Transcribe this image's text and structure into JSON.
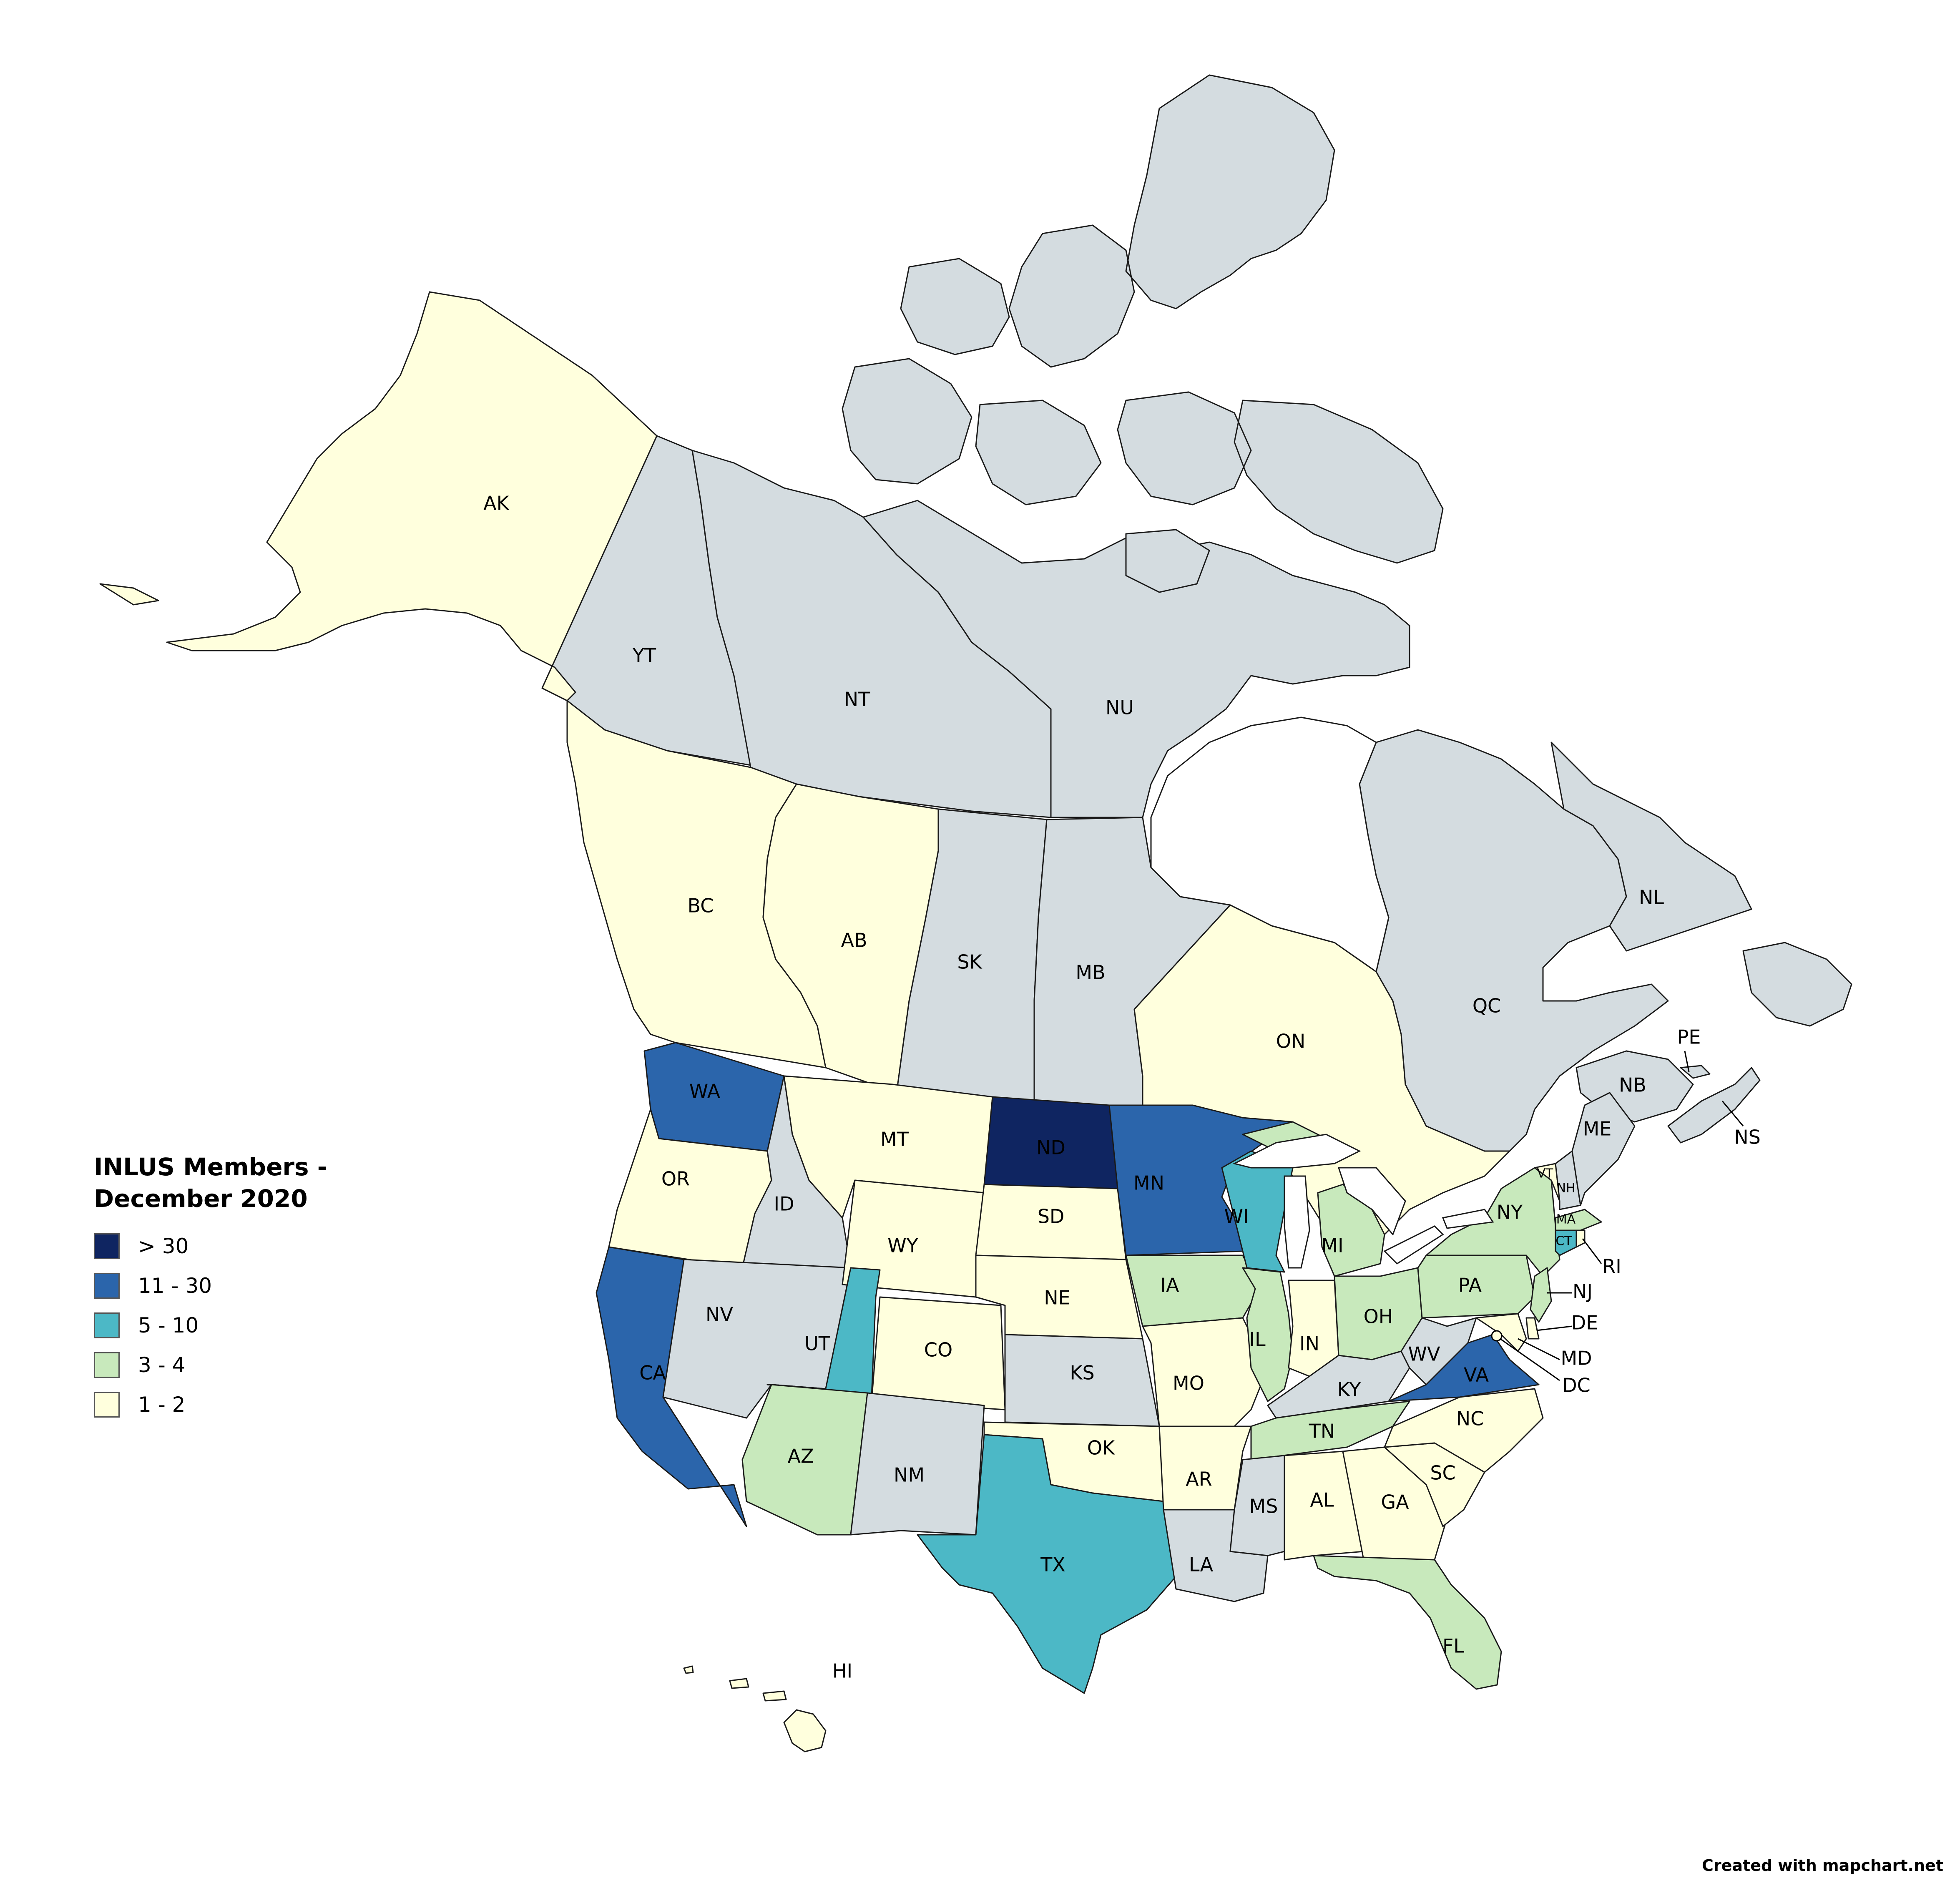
{
  "title": "INLUS Members - December 2020",
  "credit": "Created with mapchart.net",
  "colors": {
    "none": "#d4dce0",
    "c1": "#ffffdd",
    "c2": "#c8e9bc",
    "c3": "#4cb8c6",
    "c4": "#2b65ab",
    "c5": "#0f2561",
    "water": "#ffffff"
  },
  "legend": [
    {
      "label": "> 30",
      "color": "#0f2561"
    },
    {
      "label": "11 - 30",
      "color": "#2b65ab"
    },
    {
      "label": "5 - 10",
      "color": "#4cb8c6"
    },
    {
      "label": "3 - 4",
      "color": "#c8e9bc"
    },
    {
      "label": "1 - 2",
      "color": "#ffffdd"
    }
  ],
  "regions": {
    "AK": {
      "label": "AK",
      "category": "1 - 2"
    },
    "YT": {
      "label": "YT",
      "category": "none"
    },
    "NT": {
      "label": "NT",
      "category": "none"
    },
    "NU": {
      "label": "NU",
      "category": "none"
    },
    "BC": {
      "label": "BC",
      "category": "1 - 2"
    },
    "AB": {
      "label": "AB",
      "category": "1 - 2"
    },
    "SK": {
      "label": "SK",
      "category": "none"
    },
    "MB": {
      "label": "MB",
      "category": "none"
    },
    "ON": {
      "label": "ON",
      "category": "1 - 2"
    },
    "QC": {
      "label": "QC",
      "category": "none"
    },
    "NL": {
      "label": "NL",
      "category": "none"
    },
    "NB": {
      "label": "NB",
      "category": "none"
    },
    "PE": {
      "label": "PE",
      "category": "none"
    },
    "NS": {
      "label": "NS",
      "category": "none"
    },
    "WA": {
      "label": "WA",
      "category": "11 - 30"
    },
    "OR": {
      "label": "OR",
      "category": "1 - 2"
    },
    "CA": {
      "label": "CA",
      "category": "11 - 30"
    },
    "ID": {
      "label": "ID",
      "category": "none"
    },
    "NV": {
      "label": "NV",
      "category": "none"
    },
    "MT": {
      "label": "MT",
      "category": "1 - 2"
    },
    "WY": {
      "label": "WY",
      "category": "1 - 2"
    },
    "UT": {
      "label": "UT",
      "category": "5 - 10"
    },
    "CO": {
      "label": "CO",
      "category": "1 - 2"
    },
    "AZ": {
      "label": "AZ",
      "category": "3 - 4"
    },
    "NM": {
      "label": "NM",
      "category": "none"
    },
    "ND": {
      "label": "ND",
      "category": "> 30"
    },
    "SD": {
      "label": "SD",
      "category": "1 - 2"
    },
    "NE": {
      "label": "NE",
      "category": "1 - 2"
    },
    "KS": {
      "label": "KS",
      "category": "none"
    },
    "OK": {
      "label": "OK",
      "category": "1 - 2"
    },
    "TX": {
      "label": "TX",
      "category": "5 - 10"
    },
    "MN": {
      "label": "MN",
      "category": "11 - 30"
    },
    "IA": {
      "label": "IA",
      "category": "3 - 4"
    },
    "MO": {
      "label": "MO",
      "category": "1 - 2"
    },
    "AR": {
      "label": "AR",
      "category": "1 - 2"
    },
    "LA": {
      "label": "LA",
      "category": "none"
    },
    "WI": {
      "label": "WI",
      "category": "5 - 10"
    },
    "IL": {
      "label": "IL",
      "category": "3 - 4"
    },
    "MI": {
      "label": "MI",
      "category": "3 - 4"
    },
    "IN": {
      "label": "IN",
      "category": "1 - 2"
    },
    "OH": {
      "label": "OH",
      "category": "3 - 4"
    },
    "KY": {
      "label": "KY",
      "category": "none"
    },
    "TN": {
      "label": "TN",
      "category": "3 - 4"
    },
    "MS": {
      "label": "MS",
      "category": "none"
    },
    "AL": {
      "label": "AL",
      "category": "1 - 2"
    },
    "GA": {
      "label": "GA",
      "category": "1 - 2"
    },
    "FL": {
      "label": "FL",
      "category": "3 - 4"
    },
    "SC": {
      "label": "SC",
      "category": "1 - 2"
    },
    "NC": {
      "label": "NC",
      "category": "1 - 2"
    },
    "VA": {
      "label": "VA",
      "category": "11 - 30"
    },
    "WV": {
      "label": "WV",
      "category": "none"
    },
    "PA": {
      "label": "PA",
      "category": "3 - 4"
    },
    "NY": {
      "label": "NY",
      "category": "3 - 4"
    },
    "VT": {
      "label": "VT",
      "category": "1 - 2"
    },
    "NH": {
      "label": "NH",
      "category": "none"
    },
    "ME": {
      "label": "ME",
      "category": "none"
    },
    "MA": {
      "label": "MA",
      "category": "3 - 4"
    },
    "CT": {
      "label": "CT",
      "category": "5 - 10"
    },
    "RI": {
      "label": "RI",
      "category": "1 - 2"
    },
    "NJ": {
      "label": "NJ",
      "category": "3 - 4"
    },
    "DE": {
      "label": "DE",
      "category": "1 - 2"
    },
    "MD": {
      "label": "MD",
      "category": "1 - 2"
    },
    "DC": {
      "label": "DC",
      "category": "1 - 2"
    },
    "HI": {
      "label": "HI",
      "category": "1 - 2"
    }
  }
}
